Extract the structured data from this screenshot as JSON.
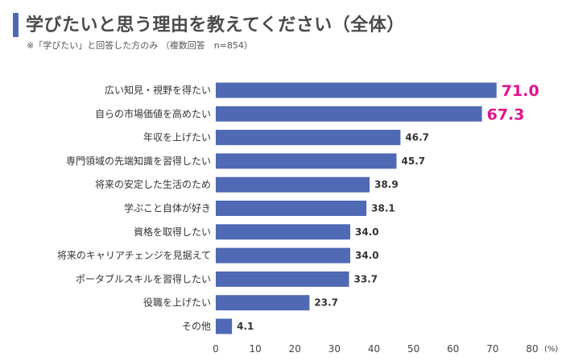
{
  "title": "学びたいと思う理由を教えてください（全体）",
  "subtitle": "※「学びたい」と回答した方のみ （複数回答　n=854）",
  "colors": {
    "bar": "#4f69b5",
    "highlight": "#e0148c",
    "title_accent": "#4f69b5"
  },
  "chart_data": {
    "type": "bar",
    "orientation": "horizontal",
    "categories": [
      "広い知見・視野を得たい",
      "自らの市場価値を高めたい",
      "年収を上げたい",
      "専門領域の先端知識を習得したい",
      "将来の安定した生活のため",
      "学ぶこと自体が好き",
      "資格を取得したい",
      "将来のキャリアチェンジを見据えて",
      "ポータブルスキルを習得したい",
      "役職を上げたい",
      "その他"
    ],
    "values": [
      71.0,
      67.3,
      46.7,
      45.7,
      38.9,
      38.1,
      34.0,
      34.0,
      33.7,
      23.7,
      4.1
    ],
    "value_labels": [
      "71.0",
      "67.3",
      "46.7",
      "45.7",
      "38.9",
      "38.1",
      "34.0",
      "34.0",
      "33.7",
      "23.7",
      "4.1"
    ],
    "highlighted": [
      0,
      1
    ],
    "xlim": [
      0,
      80
    ],
    "xticks": [
      "0",
      "10",
      "20",
      "30",
      "40",
      "50",
      "60",
      "70",
      "80"
    ],
    "xunit": "(%)",
    "grid": false
  }
}
